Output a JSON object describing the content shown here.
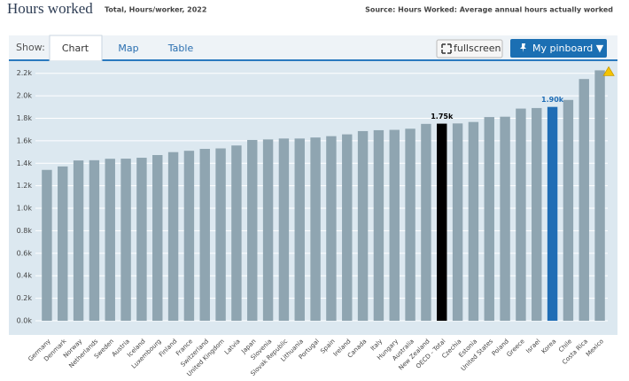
{
  "header": {
    "title": "Hours worked",
    "subtitle": "Total, Hours/worker, 2022",
    "source": "Source: Hours Worked: Average annual hours actually worked"
  },
  "toolbar": {
    "show": "Show:",
    "tabs": [
      "Chart",
      "Map",
      "Table"
    ],
    "fullscreen": "fullscreen",
    "pinboard": "My pinboard ▼"
  },
  "chart_data": {
    "type": "bar",
    "categories": [
      "Germany",
      "Denmark",
      "Norway",
      "Netherlands",
      "Sweden",
      "Austria",
      "Iceland",
      "Luxembourg",
      "Finland",
      "France",
      "Switzerland",
      "United Kingdom",
      "Latvia",
      "Japan",
      "Slovenia",
      "Slovak Republic",
      "Lithuania",
      "Portugal",
      "Spain",
      "Ireland",
      "Canada",
      "Italy",
      "Hungary",
      "Australia",
      "New Zealand",
      "OECD - Total",
      "Czechia",
      "Estonia",
      "United States",
      "Poland",
      "Greece",
      "Israel",
      "Korea",
      "Chile",
      "Costa Rica",
      "Mexico"
    ],
    "values": [
      1341,
      1372,
      1425,
      1427,
      1440,
      1441,
      1449,
      1473,
      1499,
      1511,
      1528,
      1532,
      1558,
      1607,
      1612,
      1620,
      1620,
      1629,
      1641,
      1657,
      1686,
      1694,
      1697,
      1707,
      1750,
      1752,
      1754,
      1767,
      1811,
      1814,
      1886,
      1891,
      1901,
      1963,
      2149,
      2226
    ],
    "value_labels": [
      null,
      null,
      null,
      null,
      null,
      null,
      null,
      null,
      null,
      null,
      null,
      null,
      null,
      null,
      null,
      null,
      null,
      null,
      null,
      null,
      null,
      null,
      null,
      null,
      null,
      "1.75k",
      null,
      null,
      null,
      null,
      null,
      null,
      "1.90k",
      null,
      null,
      null
    ],
    "colors": [
      "#8fa5b1",
      "#8fa5b1",
      "#8fa5b1",
      "#8fa5b1",
      "#8fa5b1",
      "#8fa5b1",
      "#8fa5b1",
      "#8fa5b1",
      "#8fa5b1",
      "#8fa5b1",
      "#8fa5b1",
      "#8fa5b1",
      "#8fa5b1",
      "#8fa5b1",
      "#8fa5b1",
      "#8fa5b1",
      "#8fa5b1",
      "#8fa5b1",
      "#8fa5b1",
      "#8fa5b1",
      "#8fa5b1",
      "#8fa5b1",
      "#8fa5b1",
      "#8fa5b1",
      "#8fa5b1",
      "#000000",
      "#8fa5b1",
      "#8fa5b1",
      "#8fa5b1",
      "#8fa5b1",
      "#8fa5b1",
      "#8fa5b1",
      "#1f6db5",
      "#8fa5b1",
      "#8fa5b1",
      "#8fa5b1"
    ],
    "ylim": [
      0,
      2300
    ],
    "yticks": [
      {
        "value": 0,
        "label": "0.0k"
      },
      {
        "value": 200,
        "label": "0.2k"
      },
      {
        "value": 400,
        "label": "0.4k"
      },
      {
        "value": 600,
        "label": "0.6k"
      },
      {
        "value": 800,
        "label": "0.8k"
      },
      {
        "value": 1000,
        "label": "1.0k"
      },
      {
        "value": 1200,
        "label": "1.2k"
      },
      {
        "value": 1400,
        "label": "1.4k"
      },
      {
        "value": 1600,
        "label": "1.6k"
      },
      {
        "value": 1800,
        "label": "1.8k"
      },
      {
        "value": 2000,
        "label": "2.0k"
      },
      {
        "value": 2200,
        "label": "2.2k"
      }
    ],
    "grid": true
  }
}
